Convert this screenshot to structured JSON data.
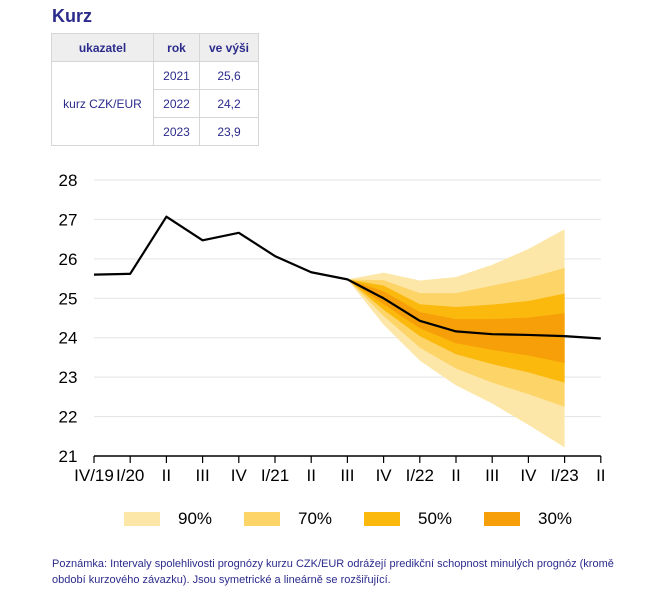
{
  "title": "Kurz",
  "table": {
    "headers": [
      "ukazatel",
      "rok",
      "ve výši"
    ],
    "indicator": "kurz CZK/EUR",
    "rows": [
      {
        "rok": "2021",
        "value": "25,6"
      },
      {
        "rok": "2022",
        "value": "24,2"
      },
      {
        "rok": "2023",
        "value": "23,9"
      }
    ]
  },
  "colors": {
    "band90": "#fde7a8",
    "band70": "#fdd468",
    "band50": "#fbb90d",
    "band30": "#f79f08",
    "line": "#000000",
    "grid": "#e3e3e3",
    "text_blue": "#2b2b8c"
  },
  "chart_data": {
    "type": "area",
    "title": "",
    "xlabel": "",
    "ylabel": "",
    "ylim": [
      21,
      28
    ],
    "yticks": [
      21,
      22,
      23,
      24,
      25,
      26,
      27,
      28
    ],
    "grid": true,
    "legend_position": "bottom",
    "x_labels": [
      "IV/19",
      "I/20",
      "II",
      "III",
      "IV",
      "I/21",
      "II",
      "III",
      "IV",
      "I/22",
      "II",
      "III",
      "IV",
      "I/23",
      "II"
    ],
    "series": [
      {
        "name": "kurz CZK/EUR",
        "values": [
          25.6,
          25.62,
          27.07,
          26.47,
          26.66,
          26.07,
          25.66,
          25.48,
          25.0,
          24.43,
          24.16,
          24.09,
          24.07,
          24.04,
          23.98
        ]
      }
    ],
    "forecast_start_index": 7,
    "bands": [
      {
        "name": "90%",
        "upper": [
          25.48,
          25.65,
          25.45,
          25.54,
          25.85,
          26.25,
          26.75
        ],
        "lower": [
          25.48,
          24.33,
          23.42,
          22.79,
          22.33,
          21.79,
          21.22
        ]
      },
      {
        "name": "70%",
        "upper": [
          25.48,
          25.46,
          25.13,
          25.13,
          25.32,
          25.51,
          25.77
        ],
        "lower": [
          25.48,
          24.55,
          23.75,
          23.22,
          22.86,
          22.57,
          22.25
        ]
      },
      {
        "name": "50%",
        "upper": [
          25.48,
          25.32,
          24.85,
          24.78,
          24.84,
          24.93,
          25.12
        ],
        "lower": [
          25.48,
          24.71,
          24.04,
          23.58,
          23.33,
          23.12,
          22.86
        ]
      },
      {
        "name": "30%",
        "upper": [
          25.48,
          25.18,
          24.65,
          24.47,
          24.47,
          24.51,
          24.62
        ],
        "lower": [
          25.48,
          24.85,
          24.24,
          23.86,
          23.69,
          23.55,
          23.36
        ]
      }
    ]
  },
  "legend": [
    {
      "label": "90%",
      "color": "#fde7a8"
    },
    {
      "label": "70%",
      "color": "#fdd468"
    },
    {
      "label": "50%",
      "color": "#fbb90d"
    },
    {
      "label": "30%",
      "color": "#f79f08"
    }
  ],
  "note": "Poznámka: Intervaly spolehlivosti prognózy kurzu CZK/EUR odrážejí predikční schopnost minulých prognóz (kromě období kurzového závazku). Jsou symetrické a lineárně se rozšiřující."
}
